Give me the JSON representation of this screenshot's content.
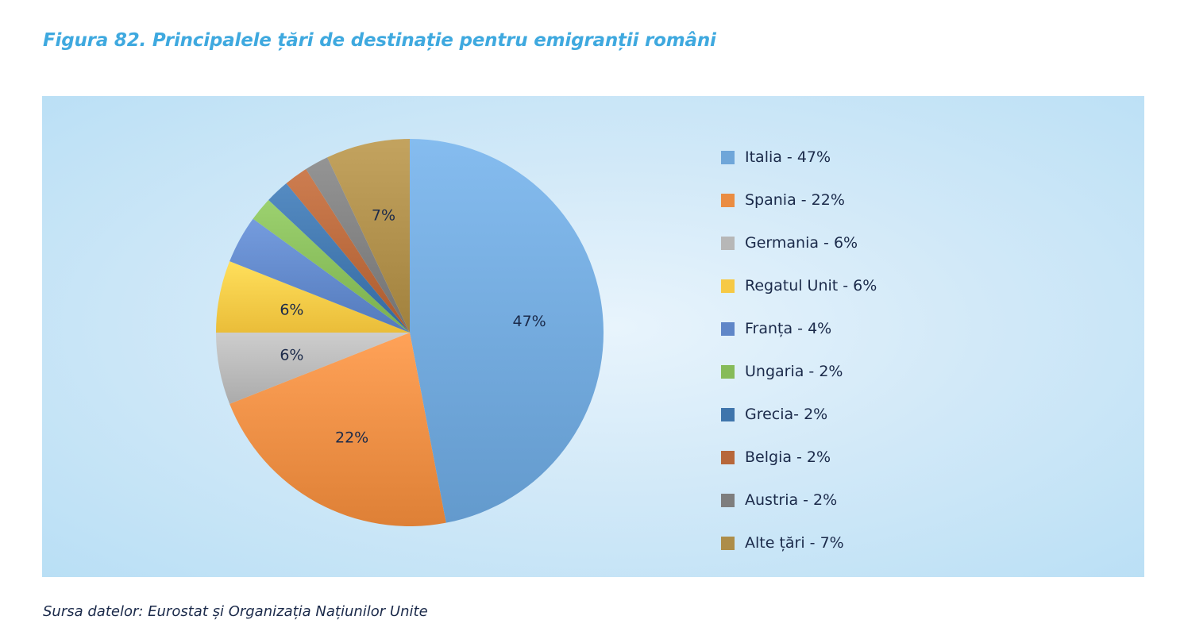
{
  "figure_title": "Figura 82. Principalele țări de destinație pentru emigranții români",
  "source_note": "Sursa datelor: Eurostat și Organizația Națiunilor Unite",
  "chart_data": {
    "type": "pie",
    "categories": [
      "Italia",
      "Spania",
      "Germania",
      "Regatul Unit",
      "Franța",
      "Ungaria",
      "Grecia",
      "Belgia",
      "Austria",
      "Alte țări"
    ],
    "values": [
      47,
      22,
      6,
      6,
      4,
      2,
      2,
      2,
      2,
      7
    ],
    "data_labels": [
      "47%",
      "22%",
      "6%",
      "6%",
      "",
      "",
      "",
      "",
      "",
      "7%"
    ],
    "legend_labels": [
      "Italia - 47%",
      "Spania - 22%",
      "Germania - 6%",
      "Regatul Unit - 6%",
      "Franța - 4%",
      "Ungaria - 2%",
      "Grecia- 2%",
      "Belgia - 2%",
      "Austria - 2%",
      "Alte țări - 7%"
    ],
    "colors": [
      "#6fa6d9",
      "#ea8c42",
      "#b7b7b7",
      "#f6c945",
      "#5f86c8",
      "#86bb59",
      "#3f75ac",
      "#b7673a",
      "#7e7e7e",
      "#ad8d49"
    ],
    "legend_position": "right",
    "background": "#cde7f7",
    "start": "top",
    "direction": "clockwise"
  }
}
